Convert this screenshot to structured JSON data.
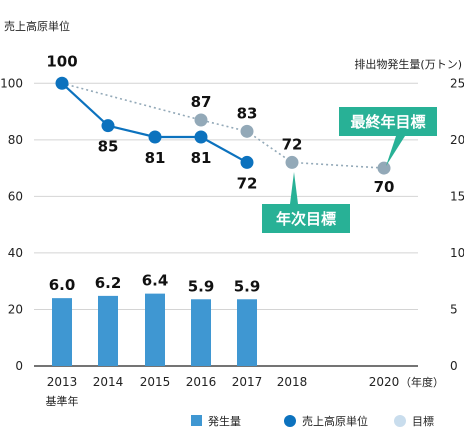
{
  "chart_data": {
    "type": "bar+line",
    "categories": [
      "2013",
      "2014",
      "2015",
      "2016",
      "2017",
      "2018",
      "2020"
    ],
    "x_suffix": "（年度）",
    "base_year_label": "基準年",
    "left_axis": {
      "label": "売上高原単位",
      "range": [
        0,
        110
      ],
      "ticks": [
        0,
        20,
        40,
        60,
        80,
        100
      ]
    },
    "right_axis": {
      "label": "排出物発生量(万トン)",
      "range": [
        0,
        27.5
      ],
      "ticks": [
        0,
        5,
        10,
        15,
        20,
        25
      ]
    },
    "series": [
      {
        "name": "発生量",
        "type": "bar",
        "axis": "right",
        "color": "#3f97d2",
        "points": [
          {
            "x": "2013",
            "value": 6.0,
            "label": "6.0"
          },
          {
            "x": "2014",
            "value": 6.2,
            "label": "6.2"
          },
          {
            "x": "2015",
            "value": 6.4,
            "label": "6.4"
          },
          {
            "x": "2016",
            "value": 5.9,
            "label": "5.9"
          },
          {
            "x": "2017",
            "value": 5.9,
            "label": "5.9"
          }
        ]
      },
      {
        "name": "売上高原単位",
        "type": "line",
        "axis": "left",
        "color": "#0c72be",
        "points": [
          {
            "x": "2013",
            "value": 100,
            "label": "100"
          },
          {
            "x": "2014",
            "value": 85,
            "label": "85"
          },
          {
            "x": "2015",
            "value": 81,
            "label": "81"
          },
          {
            "x": "2016",
            "value": 81,
            "label": "81"
          },
          {
            "x": "2017",
            "value": 72,
            "label": "72"
          }
        ]
      },
      {
        "name": "目標",
        "type": "line",
        "style": "dotted",
        "axis": "left",
        "color": "#93a9b8",
        "points": [
          {
            "x": "2013",
            "value": 100
          },
          {
            "x": "2016",
            "value": 87,
            "label": "87"
          },
          {
            "x": "2017",
            "value": 83,
            "label": "83"
          },
          {
            "x": "2018",
            "value": 72,
            "label": "72"
          },
          {
            "x": "2020",
            "value": 70,
            "label": "70"
          }
        ]
      }
    ],
    "annotations": [
      {
        "text": "年次目標",
        "target": "2018",
        "color": "#28b196"
      },
      {
        "text": "最終年目標",
        "target": "2020",
        "color": "#28b196"
      }
    ],
    "legend": {
      "position": "bottom",
      "items": [
        {
          "label": "発生量",
          "marker": "square",
          "color": "#3f97d2"
        },
        {
          "label": "売上高原単位",
          "marker": "circle",
          "color": "#0c72be"
        },
        {
          "label": "目標",
          "marker": "circle",
          "color": "#c9dded"
        }
      ]
    },
    "grid": "horizontal"
  }
}
